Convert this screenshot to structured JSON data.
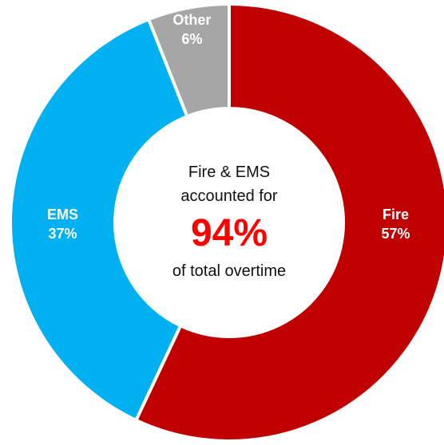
{
  "chart_data": {
    "type": "pie",
    "variant": "donut",
    "categories": [
      "Fire",
      "EMS",
      "Other"
    ],
    "values": [
      57,
      37,
      6
    ],
    "value_labels": [
      "57%",
      "37%",
      "6%"
    ],
    "colors": [
      "#c00000",
      "#00b0f0",
      "#a6a6a6"
    ],
    "center_annotation": {
      "line1": "Fire & EMS",
      "line2": "accounted for",
      "highlight": "94%",
      "line3": "of total overtime",
      "highlight_color": "#ff0000"
    }
  }
}
